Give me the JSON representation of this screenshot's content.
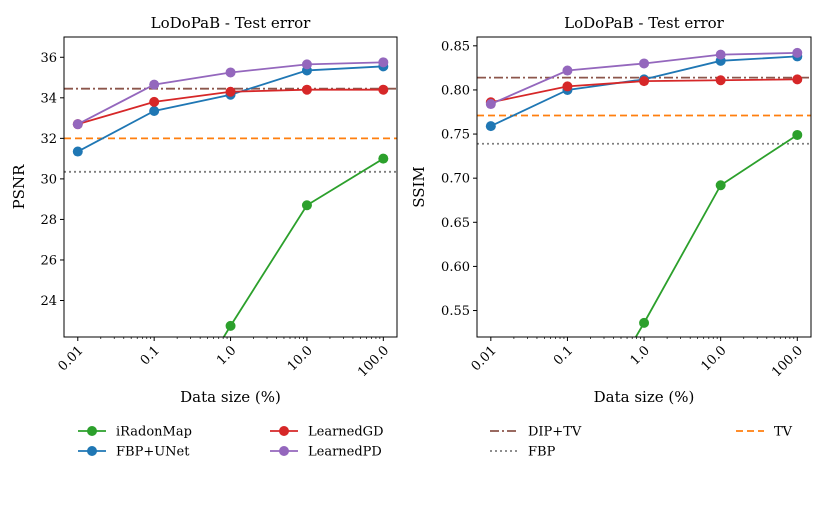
{
  "chart_data": [
    {
      "type": "line",
      "title": "LoDoPaB - Test error",
      "xlabel": "Data size (%)",
      "ylabel": "PSNR",
      "x_scale": "log",
      "categories": [
        "0.01",
        "0.1",
        "1.0",
        "10.0",
        "100.0"
      ],
      "x": [
        0.01,
        0.1,
        1.0,
        10.0,
        100.0
      ],
      "xlim": [
        0.0066,
        151
      ],
      "ylim": [
        22.2,
        37.0
      ],
      "yticks": [
        24,
        26,
        28,
        30,
        32,
        34,
        36
      ],
      "ytick_labels": [
        "24",
        "26",
        "28",
        "30",
        "32",
        "34",
        "36"
      ],
      "series": [
        {
          "name": "iRadonMap",
          "color": "#2ca02c",
          "values": [
            null,
            null,
            22.75,
            28.7,
            31.0
          ]
        },
        {
          "name": "FBP+UNet",
          "color": "#1f77b4",
          "values": [
            31.35,
            33.35,
            34.15,
            35.35,
            35.55
          ]
        },
        {
          "name": "LearnedGD",
          "color": "#d62728",
          "values": [
            32.7,
            33.8,
            34.3,
            34.4,
            34.4
          ]
        },
        {
          "name": "LearnedPD",
          "color": "#9467bd",
          "values": [
            32.7,
            34.65,
            35.25,
            35.65,
            35.75
          ]
        }
      ],
      "baselines": [
        {
          "name": "DIP+TV",
          "color": "#8c564b",
          "style": "dashdot",
          "value": 34.45
        },
        {
          "name": "TV",
          "color": "#ff7f0e",
          "style": "dashed",
          "value": 32.0
        },
        {
          "name": "FBP",
          "color": "#7f7f7f",
          "style": "dotted",
          "value": 30.35
        }
      ]
    },
    {
      "type": "line",
      "title": "LoDoPaB - Test error",
      "xlabel": "Data size (%)",
      "ylabel": "SSIM",
      "x_scale": "log",
      "categories": [
        "0.01",
        "0.1",
        "1.0",
        "10.0",
        "100.0"
      ],
      "x": [
        0.01,
        0.1,
        1.0,
        10.0,
        100.0
      ],
      "xlim": [
        0.0066,
        151
      ],
      "ylim": [
        0.52,
        0.86
      ],
      "yticks": [
        0.55,
        0.6,
        0.65,
        0.7,
        0.75,
        0.8,
        0.85
      ],
      "ytick_labels": [
        "0.55",
        "0.60",
        "0.65",
        "0.70",
        "0.75",
        "0.80",
        "0.85"
      ],
      "series": [
        {
          "name": "iRadonMap",
          "color": "#2ca02c",
          "values": [
            null,
            null,
            0.536,
            0.692,
            0.749
          ]
        },
        {
          "name": "FBP+UNet",
          "color": "#1f77b4",
          "values": [
            0.759,
            0.8,
            0.812,
            0.833,
            0.838
          ]
        },
        {
          "name": "LearnedGD",
          "color": "#d62728",
          "values": [
            0.786,
            0.804,
            0.81,
            0.811,
            0.812
          ]
        },
        {
          "name": "LearnedPD",
          "color": "#9467bd",
          "values": [
            0.784,
            0.822,
            0.83,
            0.84,
            0.842
          ]
        }
      ],
      "baselines": [
        {
          "name": "DIP+TV",
          "color": "#8c564b",
          "style": "dashdot",
          "value": 0.814
        },
        {
          "name": "TV",
          "color": "#ff7f0e",
          "style": "dashed",
          "value": 0.771
        },
        {
          "name": "FBP",
          "color": "#7f7f7f",
          "style": "dotted",
          "value": 0.739
        }
      ]
    }
  ],
  "legends": [
    {
      "placement": "below-left-axes",
      "entries": [
        {
          "name": "iRadonMap",
          "color": "#2ca02c",
          "kind": "marker"
        },
        {
          "name": "FBP+UNet",
          "color": "#1f77b4",
          "kind": "marker"
        },
        {
          "name": "LearnedGD",
          "color": "#d62728",
          "kind": "marker"
        },
        {
          "name": "LearnedPD",
          "color": "#9467bd",
          "kind": "marker"
        }
      ]
    },
    {
      "placement": "below-right-axes",
      "entries": [
        {
          "name": "DIP+TV",
          "color": "#8c564b",
          "kind": "dashdot"
        },
        {
          "name": "FBP",
          "color": "#7f7f7f",
          "kind": "dotted"
        },
        {
          "name": "TV",
          "color": "#ff7f0e",
          "kind": "dashed"
        }
      ]
    }
  ]
}
